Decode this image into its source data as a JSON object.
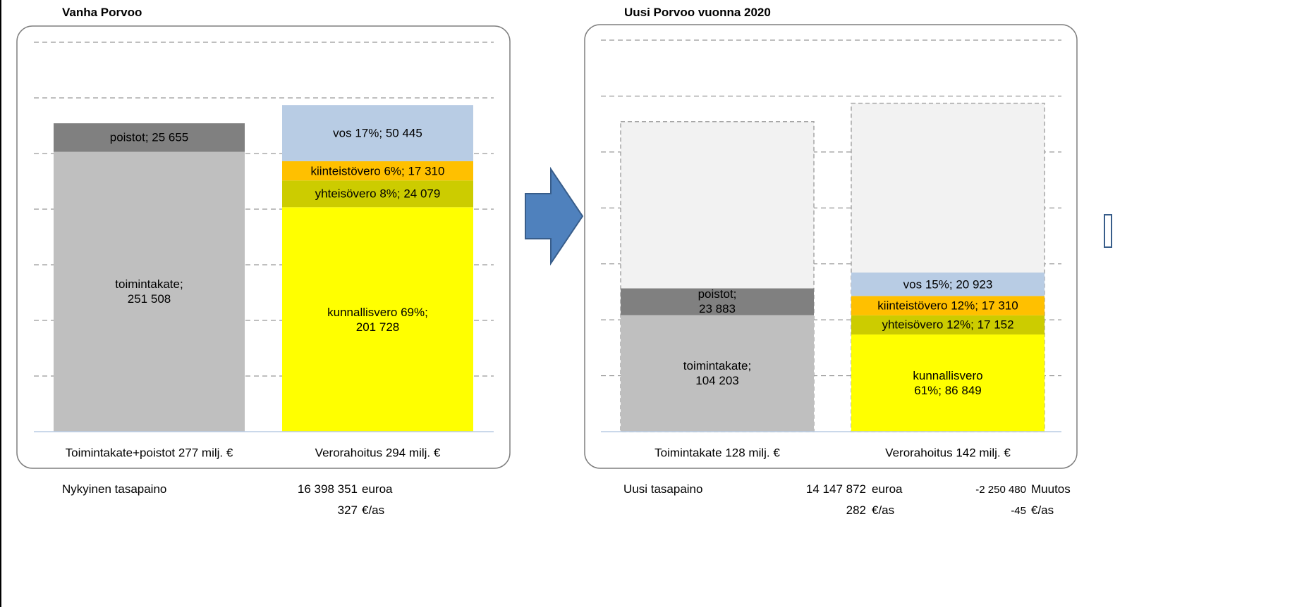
{
  "chart_data": [
    {
      "type": "stacked-bar",
      "title": "Vanha Porvoo",
      "categories": [
        "Toimintakate+poistot 277 milj. €",
        "Verorahoitus 294 milj. €"
      ],
      "series": [
        {
          "color": "#bfbfbf",
          "values": [
            251508,
            null
          ],
          "value_labels": [
            "toimintakate;\n251 508",
            null
          ]
        },
        {
          "color": "#808080",
          "values": [
            25655,
            null
          ],
          "value_labels": [
            "poistot; 25 655",
            null
          ]
        },
        {
          "color": "#ffff00",
          "values": [
            null,
            201728
          ],
          "value_labels": [
            null,
            "kunnallisvero 69%;\n201 728"
          ]
        },
        {
          "color": "#cccc00",
          "values": [
            null,
            24079
          ],
          "value_labels": [
            null,
            "yhteisövero 8%; 24 079"
          ]
        },
        {
          "color": "#ffc000",
          "values": [
            null,
            17310
          ],
          "value_labels": [
            null,
            "kiinteistövero 6%; 17 310"
          ]
        },
        {
          "color": "#b8cce4",
          "values": [
            null,
            50445
          ],
          "value_labels": [
            null,
            "vos 17%; 50 445"
          ]
        }
      ],
      "ylim": [
        0,
        350000
      ],
      "yticks": [
        0,
        50000,
        100000,
        150000,
        200000,
        250000,
        300000,
        350000
      ],
      "grid": true
    },
    {
      "type": "stacked-bar",
      "title": "Uusi Porvoo vuonna 2020",
      "categories": [
        "Toimintakate 128 milj. €",
        "Verorahoitus 142 milj. €"
      ],
      "series": [
        {
          "color": "#bfbfbf",
          "values": [
            104203,
            null
          ],
          "value_labels": [
            "toimintakate;\n104 203",
            null
          ]
        },
        {
          "color": "#808080",
          "values": [
            23883,
            null
          ],
          "value_labels": [
            "poistot;\n23 883",
            null
          ]
        },
        {
          "color": "#ffff00",
          "values": [
            null,
            86849
          ],
          "value_labels": [
            null,
            "kunnallisvero\n61%; 86 849"
          ]
        },
        {
          "color": "#cccc00",
          "values": [
            null,
            17152
          ],
          "value_labels": [
            null,
            "yhteisövero 12%; 17 152"
          ]
        },
        {
          "color": "#ffc000",
          "values": [
            null,
            17310
          ],
          "value_labels": [
            null,
            "kiinteistövero 12%; 17 310"
          ]
        },
        {
          "color": "#b8cce4",
          "values": [
            null,
            20923
          ],
          "value_labels": [
            null,
            "vos 15%; 20 923"
          ]
        }
      ],
      "ylim": [
        0,
        350000
      ],
      "yticks": [
        0,
        50000,
        100000,
        150000,
        200000,
        250000,
        300000,
        350000
      ],
      "grid": true
    }
  ],
  "left_footer": {
    "label": "Nykyinen tasapaino",
    "total": "16 398 351",
    "total_unit": "euroa",
    "per_capita": "327",
    "per_capita_unit": "€/as"
  },
  "right_footer": {
    "label": "Uusi tasapaino",
    "total": "14 147 872",
    "total_unit": "euroa",
    "per_capita": "282",
    "per_capita_unit": "€/as",
    "change": "-2 250 480",
    "change_unit": "Muutos",
    "change_per_capita": "-45",
    "change_per_capita_unit": "€/as"
  }
}
